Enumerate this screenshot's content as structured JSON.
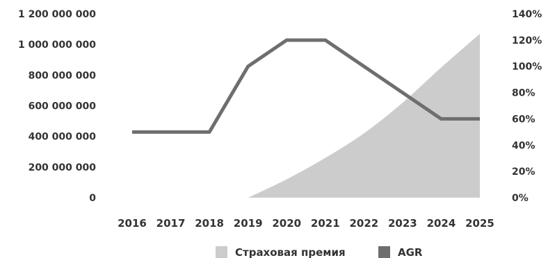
{
  "chart_data": {
    "type": "area+line",
    "categories": [
      "2016",
      "2017",
      "2018",
      "2019",
      "2020",
      "2021",
      "2022",
      "2023",
      "2024",
      "2025"
    ],
    "series": [
      {
        "name": "Страховая премия",
        "type": "area",
        "axis": "left",
        "color": "#cccccc",
        "values": [
          null,
          null,
          null,
          0,
          120000000,
          260000000,
          420000000,
          620000000,
          850000000,
          1070000000
        ]
      },
      {
        "name": "AGR",
        "type": "line",
        "axis": "right",
        "color": "#6e6e6e",
        "values": [
          50,
          50,
          50,
          100,
          120,
          120,
          100,
          80,
          60,
          60
        ]
      }
    ],
    "y_left": {
      "min": 0,
      "max": 1200000000,
      "ticks": [
        0,
        200000000,
        400000000,
        600000000,
        800000000,
        1000000000,
        1200000000
      ],
      "tick_labels": [
        "0",
        "200 000 000",
        "400 000 000",
        "600 000 000",
        "800 000 000",
        "1 000 000 000",
        "1 200 000 000"
      ]
    },
    "y_right": {
      "min": 0,
      "max": 140,
      "ticks": [
        0,
        20,
        40,
        60,
        80,
        100,
        120,
        140
      ],
      "tick_labels": [
        "0%",
        "20%",
        "40%",
        "60%",
        "80%",
        "100%",
        "120%",
        "140%"
      ]
    },
    "grid": false,
    "legend_position": "bottom-center",
    "legend": [
      {
        "label": "Страховая премия",
        "color": "#cccccc"
      },
      {
        "label": "AGR",
        "color": "#6e6e6e"
      }
    ]
  }
}
